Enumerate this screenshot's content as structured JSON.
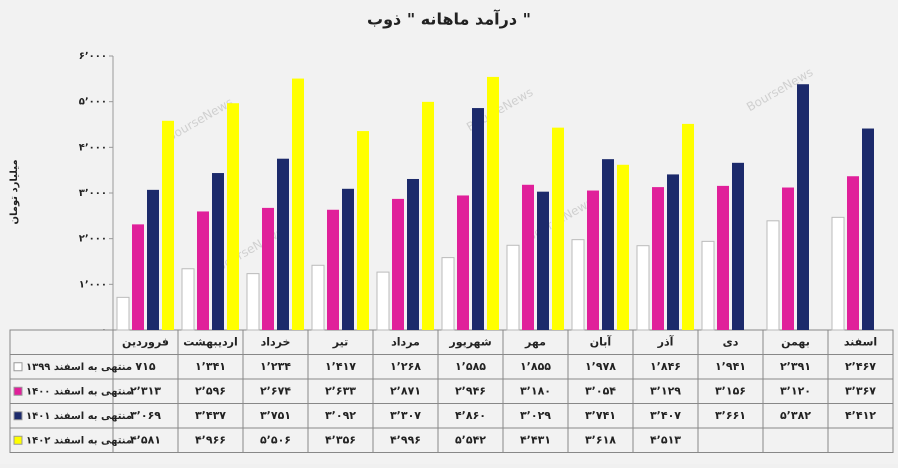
{
  "chart_data": {
    "type": "bar",
    "title": "درآمد ماهانه \" ذوب \"",
    "y_label": "میلیارد تومان",
    "watermark": "BourseNews",
    "categories": [
      "فروردین",
      "اردیبهشت",
      "خرداد",
      "تیر",
      "مرداد",
      "شهریور",
      "مهر",
      "آبان",
      "آذر",
      "دی",
      "بهمن",
      "اسفند"
    ],
    "series": [
      {
        "name": "منتهی به اسفند ۱۳۹۹",
        "color": "#ffffff",
        "values": [
          715,
          1341,
          1234,
          1417,
          1268,
          1585,
          1855,
          1978,
          1846,
          1941,
          2391,
          2467
        ],
        "value_labels": [
          "۷۱۵",
          "۱٬۳۴۱",
          "۱٬۲۳۴",
          "۱٬۴۱۷",
          "۱٬۲۶۸",
          "۱٬۵۸۵",
          "۱٬۸۵۵",
          "۱٬۹۷۸",
          "۱٬۸۴۶",
          "۱٬۹۴۱",
          "۲٬۳۹۱",
          "۲٬۴۶۷"
        ]
      },
      {
        "name": "منتهی به اسفند ۱۴۰۰",
        "color": "#e0209a",
        "values": [
          2313,
          2596,
          2674,
          2633,
          2871,
          2946,
          3180,
          3054,
          3129,
          3156,
          3120,
          3367
        ],
        "value_labels": [
          "۲٬۳۱۳",
          "۲٬۵۹۶",
          "۲٬۶۷۴",
          "۲٬۶۳۳",
          "۲٬۸۷۱",
          "۲٬۹۴۶",
          "۳٬۱۸۰",
          "۳٬۰۵۴",
          "۳٬۱۲۹",
          "۳٬۱۵۶",
          "۳٬۱۲۰",
          "۳٬۳۶۷"
        ]
      },
      {
        "name": "منتهی به اسفند ۱۴۰۱",
        "color": "#1c2a6b",
        "values": [
          3069,
          3437,
          3751,
          3092,
          3307,
          4860,
          3029,
          3741,
          3407,
          3661,
          5382,
          4412
        ],
        "value_labels": [
          "۳٬۰۶۹",
          "۳٬۴۳۷",
          "۳٬۷۵۱",
          "۳٬۰۹۲",
          "۳٬۳۰۷",
          "۴٬۸۶۰",
          "۳٬۰۲۹",
          "۳٬۷۴۱",
          "۳٬۴۰۷",
          "۳٬۶۶۱",
          "۵٬۳۸۲",
          "۴٬۴۱۲"
        ]
      },
      {
        "name": "منتهی به اسفند ۱۴۰۲",
        "color": "#ffff00",
        "values": [
          4581,
          4966,
          5506,
          4356,
          4996,
          5542,
          4431,
          3618,
          4513,
          null,
          null,
          null
        ],
        "value_labels": [
          "۴٬۵۸۱",
          "۴٬۹۶۶",
          "۵٬۵۰۶",
          "۴٬۳۵۶",
          "۴٬۹۹۶",
          "۵٬۵۴۲",
          "۴٬۴۳۱",
          "۳٬۶۱۸",
          "۴٬۵۱۳",
          null,
          null,
          null
        ]
      }
    ],
    "ylim": [
      0,
      6000
    ],
    "yticks": [
      {
        "value": 0,
        "label": "۰"
      },
      {
        "value": 1000,
        "label": "۱٬۰۰۰"
      },
      {
        "value": 2000,
        "label": "۲٬۰۰۰"
      },
      {
        "value": 3000,
        "label": "۳٬۰۰۰"
      },
      {
        "value": 4000,
        "label": "۴٬۰۰۰"
      },
      {
        "value": 5000,
        "label": "۵٬۰۰۰"
      },
      {
        "value": 6000,
        "label": "۶٬۰۰۰"
      }
    ],
    "grid": false
  }
}
